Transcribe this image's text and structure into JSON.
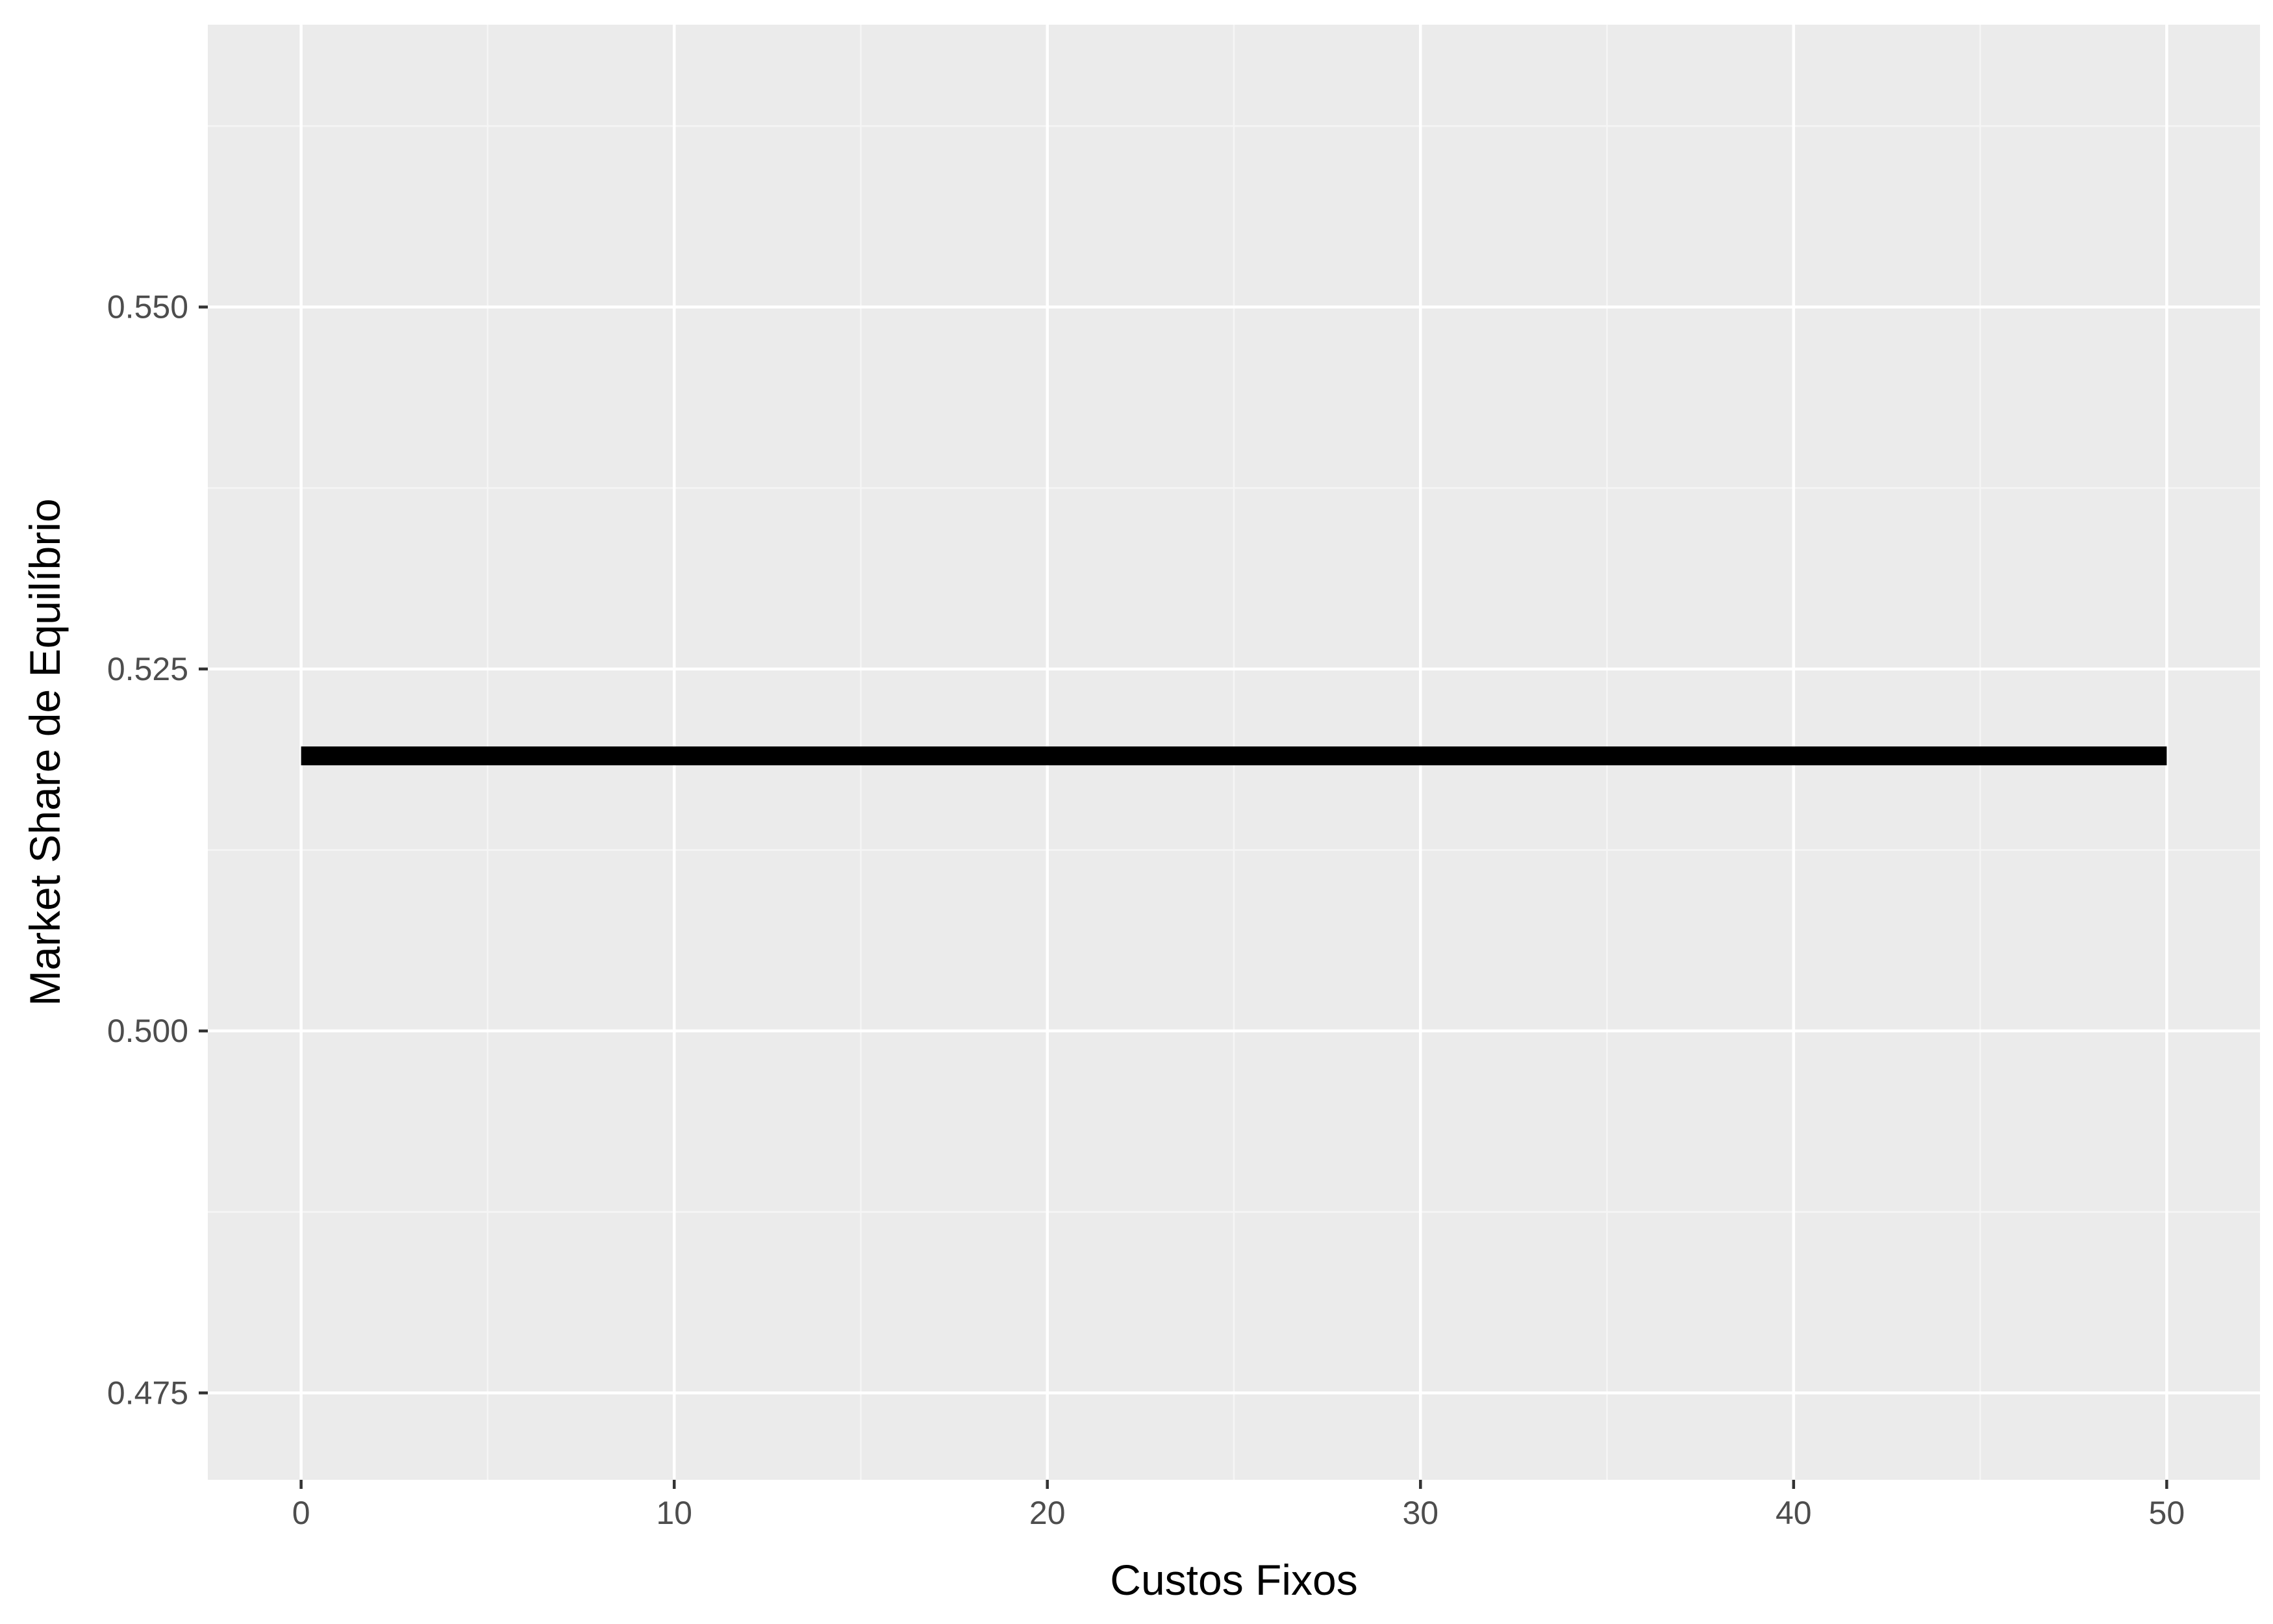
{
  "chart_data": {
    "type": "line",
    "title": "",
    "xlabel": "Custos Fixos",
    "ylabel": "Market Share de Equilíbrio",
    "xlim": [
      -2.5,
      52.5
    ],
    "ylim": [
      0.469,
      0.5695
    ],
    "x_ticks": [
      0,
      10,
      20,
      30,
      40,
      50
    ],
    "x_tick_labels": [
      "0",
      "10",
      "20",
      "30",
      "40",
      "50"
    ],
    "x_minor_ticks": [
      5,
      15,
      25,
      35,
      45
    ],
    "y_ticks": [
      0.475,
      0.5,
      0.525,
      0.55
    ],
    "y_tick_labels": [
      "0.475",
      "0.500",
      "0.525",
      "0.550"
    ],
    "y_minor_ticks": [
      0.4875,
      0.5125,
      0.5375,
      0.5625
    ],
    "grid": true,
    "legend": "none",
    "series": [
      {
        "x": [
          0,
          50
        ],
        "y": [
          0.519,
          0.519
        ],
        "color": "#000000"
      }
    ],
    "colors": {
      "panel_background": "#ebebeb",
      "grid_major": "#ffffff",
      "grid_minor": "#f5f5f5",
      "tick_mark": "#333333"
    }
  }
}
